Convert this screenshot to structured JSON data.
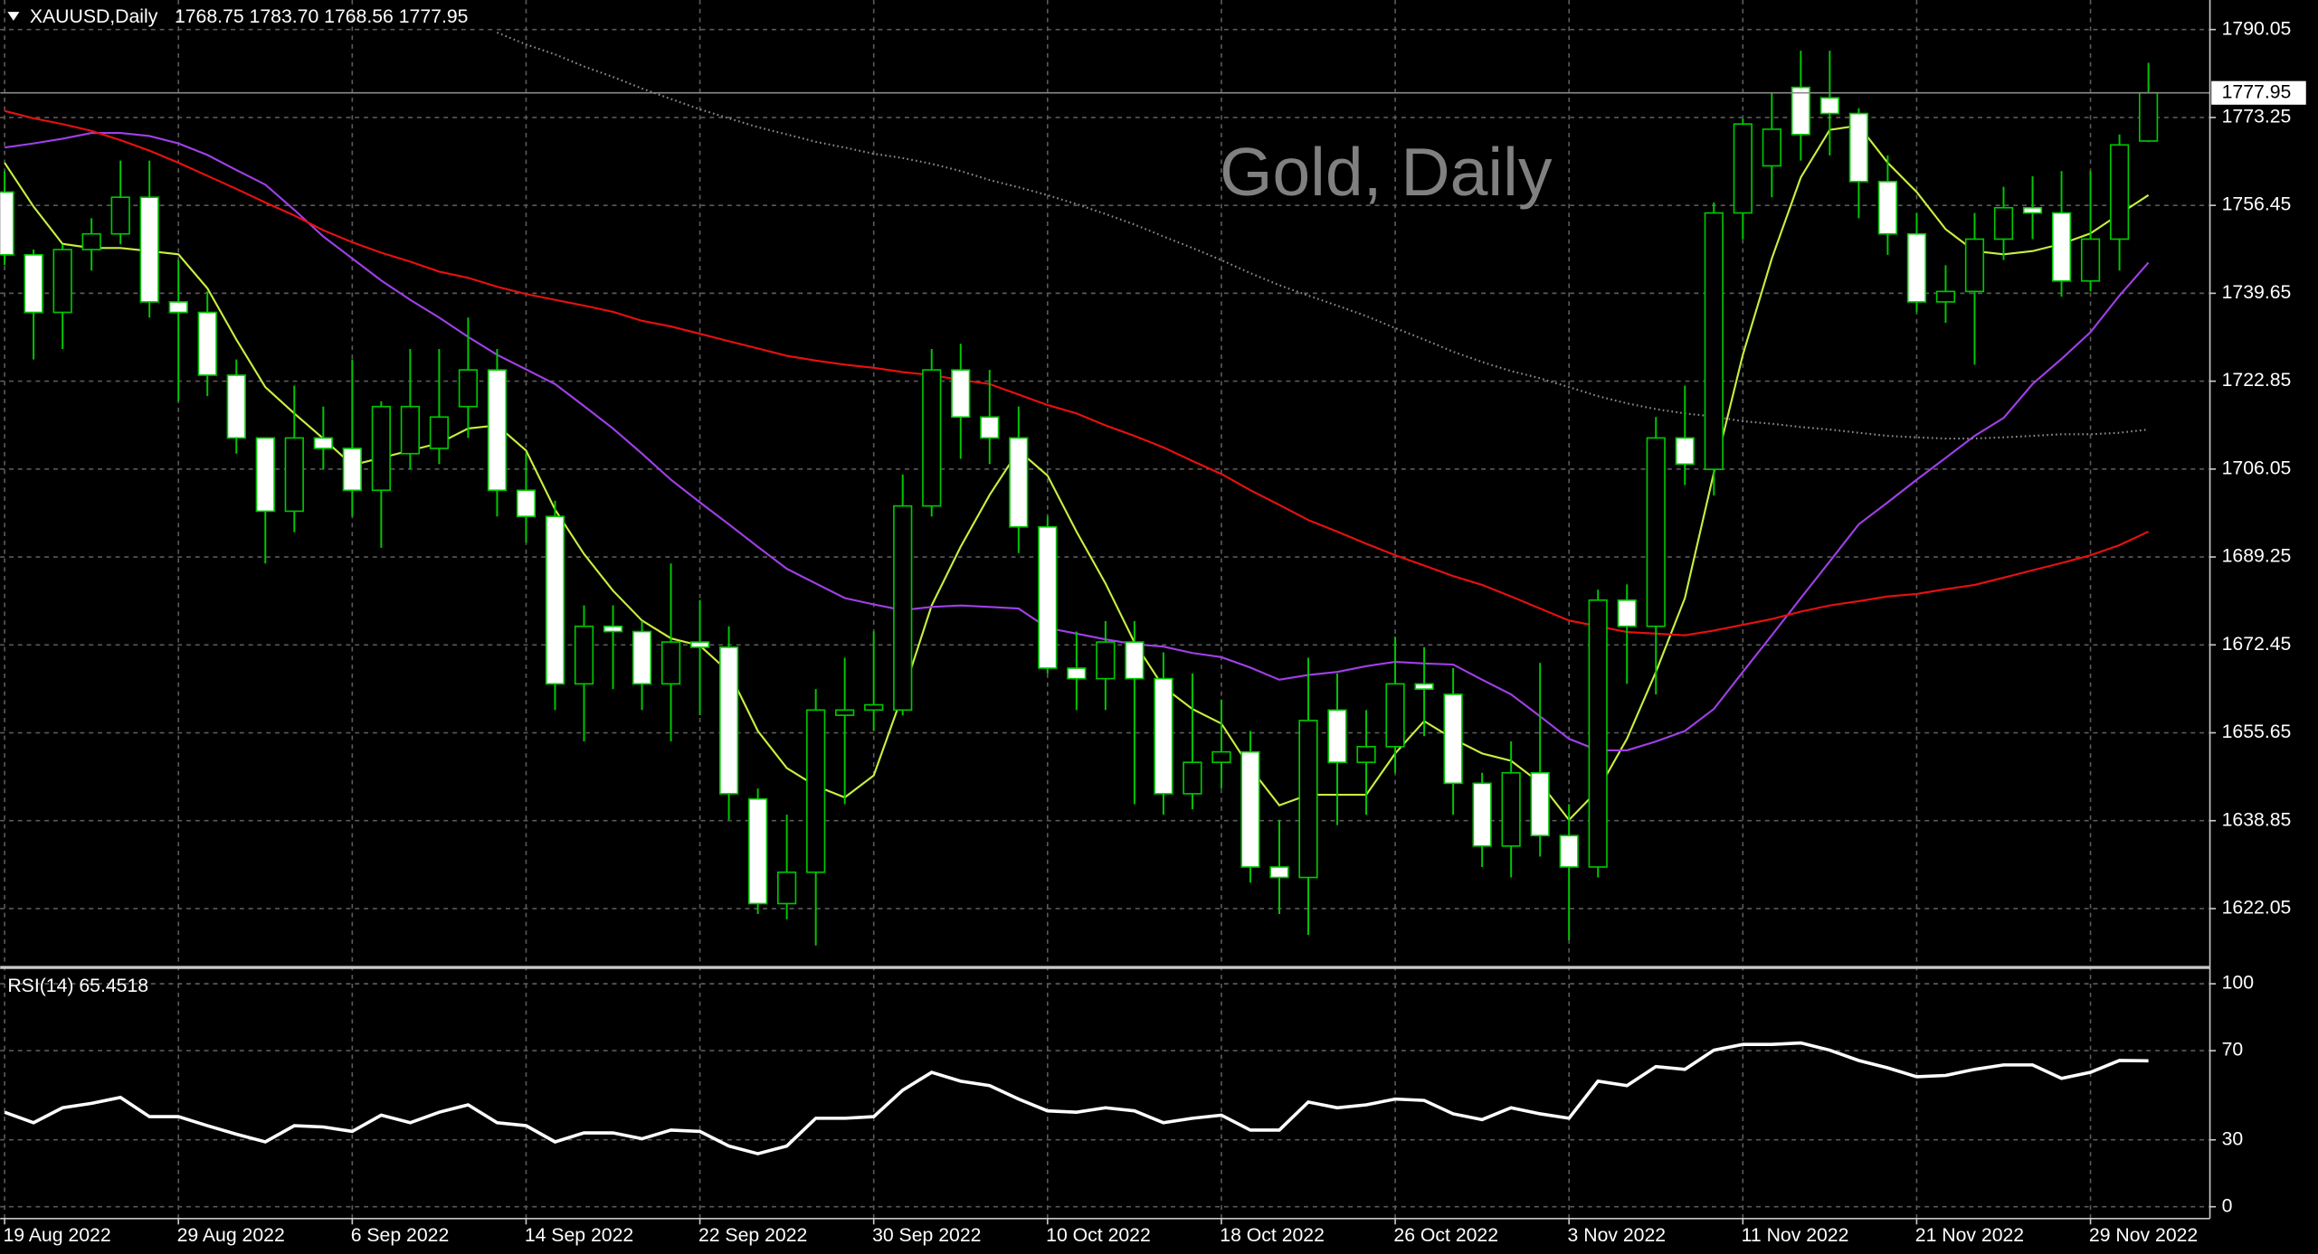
{
  "chart_data": {
    "type": "candlestick",
    "symbol": "XAUUSD,Daily",
    "ohlc_label": "1768.75 1783.70 1768.56 1777.95",
    "watermark": "Gold, Daily",
    "categories": [
      "19 Aug 2022",
      null,
      null,
      null,
      null,
      null,
      "29 Aug 2022",
      null,
      null,
      null,
      null,
      null,
      "6 Sep 2022",
      null,
      null,
      null,
      null,
      null,
      "14 Sep 2022",
      null,
      null,
      null,
      null,
      null,
      "22 Sep 2022",
      null,
      null,
      null,
      null,
      null,
      "30 Sep 2022",
      null,
      null,
      null,
      null,
      null,
      "10 Oct 2022",
      null,
      null,
      null,
      null,
      null,
      "18 Oct 2022",
      null,
      null,
      null,
      null,
      null,
      "26 Oct 2022",
      null,
      null,
      null,
      null,
      null,
      "3 Nov 2022",
      null,
      null,
      null,
      null,
      null,
      "11 Nov 2022",
      null,
      null,
      null,
      null,
      null,
      "21 Nov 2022",
      null,
      null,
      null,
      null,
      null,
      "29 Nov 2022",
      null,
      null
    ],
    "open": [
      1759,
      1747,
      1736,
      1748,
      1751,
      1758,
      1738,
      1736,
      1724,
      1712,
      1698,
      1712,
      1710,
      1702,
      1709,
      1710,
      1718,
      1725,
      1702,
      1697,
      1665,
      1676,
      1675,
      1665,
      1673,
      1672,
      1643,
      1623,
      1629,
      1659,
      1660,
      1660,
      1699,
      1725,
      1716,
      1712,
      1695,
      1668,
      1666,
      1673,
      1666,
      1644,
      1650,
      1652,
      1630,
      1628,
      1660,
      1650,
      1653,
      1665,
      1663,
      1646,
      1634,
      1648,
      1636,
      1630,
      1681,
      1676,
      1712,
      1706,
      1755,
      1764,
      1779,
      1777,
      1774,
      1761,
      1751,
      1738,
      1740,
      1750,
      1756,
      1755,
      1742,
      1750,
      1768.75
    ],
    "high": [
      1763,
      1748,
      1749,
      1754,
      1765,
      1765,
      1746,
      1740,
      1727,
      1712,
      1722,
      1718,
      1727,
      1719,
      1729,
      1729,
      1735,
      1729,
      1709,
      1700,
      1680,
      1680,
      1677,
      1688,
      1681,
      1676,
      1645,
      1640,
      1664,
      1670,
      1675,
      1705,
      1729,
      1730,
      1725,
      1718,
      1697,
      1675,
      1677,
      1677,
      1671,
      1667,
      1662,
      1656,
      1639,
      1670,
      1667,
      1660,
      1674,
      1672,
      1668,
      1648,
      1654,
      1669,
      1642,
      1683,
      1684,
      1716,
      1722,
      1757,
      1773,
      1778,
      1786,
      1786,
      1775,
      1766,
      1755,
      1745,
      1755,
      1760,
      1762,
      1763,
      1763,
      1770,
      1783.7
    ],
    "low": [
      1745,
      1727,
      1729,
      1744,
      1749,
      1735,
      1719,
      1720,
      1709,
      1688,
      1694,
      1706,
      1697,
      1691,
      1706,
      1707,
      1712,
      1697,
      1692,
      1660,
      1654,
      1664,
      1660,
      1654,
      1659,
      1639,
      1621,
      1620,
      1615,
      1642,
      1656,
      1659,
      1697,
      1708,
      1707,
      1690,
      1667,
      1660,
      1660,
      1642,
      1640,
      1641,
      1645,
      1627,
      1621,
      1617,
      1638,
      1640,
      1648,
      1655,
      1640,
      1630,
      1628,
      1632,
      1616,
      1628,
      1665,
      1663,
      1703,
      1701,
      1750,
      1758,
      1765,
      1766,
      1754,
      1747,
      1736,
      1734,
      1726,
      1746,
      1750,
      1739,
      1740,
      1744,
      1768.56
    ],
    "close": [
      1747,
      1736,
      1748,
      1751,
      1758,
      1738,
      1736,
      1724,
      1712,
      1698,
      1712,
      1710,
      1702,
      1718,
      1718,
      1716,
      1725,
      1702,
      1697,
      1665,
      1676,
      1675,
      1665,
      1673,
      1672,
      1644,
      1623,
      1629,
      1660,
      1660,
      1661,
      1699,
      1725,
      1716,
      1712,
      1695,
      1668,
      1666,
      1673,
      1666,
      1644,
      1650,
      1652,
      1630,
      1628,
      1658,
      1650,
      1653,
      1665,
      1664,
      1646,
      1634,
      1648,
      1636,
      1630,
      1681,
      1676,
      1712,
      1707,
      1755,
      1772,
      1771,
      1770,
      1774,
      1761,
      1751,
      1738,
      1740,
      1750,
      1756,
      1755,
      1742,
      1750,
      1768,
      1777.95
    ],
    "bull_color": "#000000",
    "bear_color": "#ffffff",
    "wick_color": "#00c800",
    "moving_averages": [
      {
        "color": "#c8f040",
        "style": "solid",
        "values": [
          1764.6,
          1756.2,
          1749.1,
          1748.3,
          1748.3,
          1747.7,
          1747.1,
          1740.6,
          1730.8,
          1721.7,
          1716.7,
          1711.9,
          1706.8,
          1708.2,
          1709.6,
          1711.0,
          1713.8,
          1714.4,
          1709.6,
          1698.3,
          1689.8,
          1682.8,
          1677.1,
          1673.7,
          1672.3,
          1667.3,
          1656.0,
          1648.9,
          1645.5,
          1643.3,
          1647.5,
          1663.0,
          1680.0,
          1691.2,
          1701.1,
          1709.6,
          1704.8,
          1694.1,
          1684.2,
          1672.9,
          1664.4,
          1660.2,
          1657.4,
          1648.9,
          1641.8,
          1643.8,
          1643.8,
          1643.8,
          1651.7,
          1657.9,
          1654.5,
          1651.7,
          1650.3,
          1646.1,
          1639.0,
          1644.7,
          1654.5,
          1667.3,
          1681.4,
          1705.4,
          1727.9,
          1746.3,
          1761.8,
          1770.9,
          1771.7,
          1764.6,
          1759.0,
          1751.9,
          1747.7,
          1747.1,
          1747.7,
          1749.1,
          1751.1,
          1754.8,
          1758.4
        ]
      },
      {
        "color": "#a040e8",
        "style": "solid",
        "values": [
          1767.5,
          1768.3,
          1769.2,
          1770.3,
          1770.3,
          1769.7,
          1768.3,
          1766.1,
          1763.2,
          1760.4,
          1755.6,
          1750.5,
          1746.3,
          1742.1,
          1738.4,
          1735.0,
          1731.3,
          1727.9,
          1725.1,
          1722.3,
          1718.1,
          1713.8,
          1709.0,
          1704.0,
          1699.7,
          1695.5,
          1691.2,
          1687.0,
          1684.2,
          1681.4,
          1680.2,
          1679.1,
          1679.7,
          1680.0,
          1679.7,
          1679.4,
          1675.7,
          1674.6,
          1673.5,
          1672.6,
          1672.1,
          1670.9,
          1670.1,
          1668.1,
          1665.8,
          1666.7,
          1667.3,
          1668.4,
          1669.2,
          1668.9,
          1668.7,
          1665.8,
          1663.0,
          1658.8,
          1654.5,
          1652.3,
          1652.3,
          1654.0,
          1656.0,
          1660.2,
          1667.3,
          1674.3,
          1681.4,
          1688.4,
          1695.5,
          1699.7,
          1704.0,
          1708.2,
          1712.4,
          1715.8,
          1722.3,
          1727.1,
          1732.2,
          1739.2,
          1745.5
        ]
      },
      {
        "color": "#e81010",
        "style": "solid",
        "values": [
          1774.5,
          1773.1,
          1772.0,
          1770.7,
          1768.9,
          1766.9,
          1764.6,
          1762.1,
          1759.6,
          1757.0,
          1754.5,
          1751.7,
          1749.4,
          1747.4,
          1745.7,
          1743.8,
          1742.6,
          1740.9,
          1739.5,
          1738.4,
          1737.3,
          1736.1,
          1734.4,
          1733.3,
          1731.9,
          1730.5,
          1729.1,
          1727.7,
          1726.8,
          1726.0,
          1725.4,
          1724.6,
          1724.0,
          1723.1,
          1722.3,
          1720.3,
          1718.3,
          1716.7,
          1714.4,
          1712.4,
          1710.2,
          1707.6,
          1705.1,
          1702.0,
          1699.2,
          1696.3,
          1694.1,
          1691.8,
          1689.6,
          1687.6,
          1685.6,
          1683.9,
          1681.7,
          1679.4,
          1677.1,
          1676.0,
          1674.9,
          1674.6,
          1674.3,
          1675.2,
          1676.3,
          1677.4,
          1678.8,
          1680.0,
          1680.8,
          1681.7,
          1682.2,
          1683.1,
          1683.9,
          1685.3,
          1686.7,
          1688.1,
          1689.6,
          1691.5,
          1694.1
        ]
      },
      {
        "color": "#8c8c8c",
        "style": "dotted",
        "values": [
          null,
          null,
          null,
          null,
          null,
          null,
          null,
          null,
          null,
          null,
          null,
          null,
          null,
          null,
          null,
          null,
          null,
          1789.5,
          1787.2,
          1785.3,
          1783.0,
          1781.0,
          1778.8,
          1776.8,
          1774.8,
          1773.1,
          1771.4,
          1770.0,
          1768.6,
          1767.5,
          1766.3,
          1765.5,
          1764.4,
          1763.0,
          1761.3,
          1759.9,
          1758.4,
          1756.7,
          1754.8,
          1752.8,
          1750.5,
          1748.3,
          1746.0,
          1743.5,
          1741.2,
          1739.2,
          1737.3,
          1735.3,
          1733.0,
          1730.8,
          1728.5,
          1726.5,
          1724.8,
          1723.4,
          1721.7,
          1720.0,
          1718.6,
          1717.5,
          1716.7,
          1716.1,
          1715.2,
          1714.7,
          1714.1,
          1713.6,
          1713.0,
          1712.4,
          1712.1,
          1711.9,
          1711.9,
          1712.1,
          1712.4,
          1712.7,
          1712.7,
          1713.0,
          1713.6
        ]
      }
    ],
    "current_price": {
      "value": 1777.95,
      "label": "1777.95"
    },
    "ylim": [
      1610.8,
      1795.7
    ],
    "yticks": [
      1790.05,
      1773.25,
      1756.45,
      1739.65,
      1722.85,
      1706.05,
      1689.25,
      1672.45,
      1655.65,
      1638.85,
      1622.05
    ],
    "grid": true,
    "rsi": {
      "label": "RSI(14) 65.4518",
      "color": "#ffffff",
      "values": [
        42.4,
        37.7,
        44.4,
        46.4,
        49.0,
        40.4,
        40.4,
        36.4,
        32.5,
        29.1,
        36.4,
        35.8,
        33.8,
        41.1,
        37.7,
        42.4,
        45.7,
        37.7,
        36.4,
        29.1,
        33.1,
        33.1,
        30.5,
        34.4,
        33.8,
        27.2,
        23.8,
        27.2,
        39.7,
        39.7,
        40.4,
        52.3,
        60.3,
        56.3,
        54.3,
        48.3,
        43.0,
        42.4,
        44.4,
        43.0,
        37.7,
        39.7,
        41.1,
        34.4,
        34.4,
        47.0,
        44.4,
        45.7,
        48.3,
        47.7,
        41.7,
        39.1,
        44.4,
        41.7,
        39.7,
        56.3,
        54.3,
        62.9,
        61.6,
        70.2,
        72.8,
        72.8,
        73.5,
        70.2,
        65.6,
        62.3,
        58.3,
        58.9,
        61.6,
        63.6,
        63.6,
        57.6,
        60.3,
        65.6,
        65.4518
      ],
      "ylim": [
        -5.3,
        106
      ],
      "yticks": [
        0,
        30,
        70,
        100
      ]
    }
  }
}
